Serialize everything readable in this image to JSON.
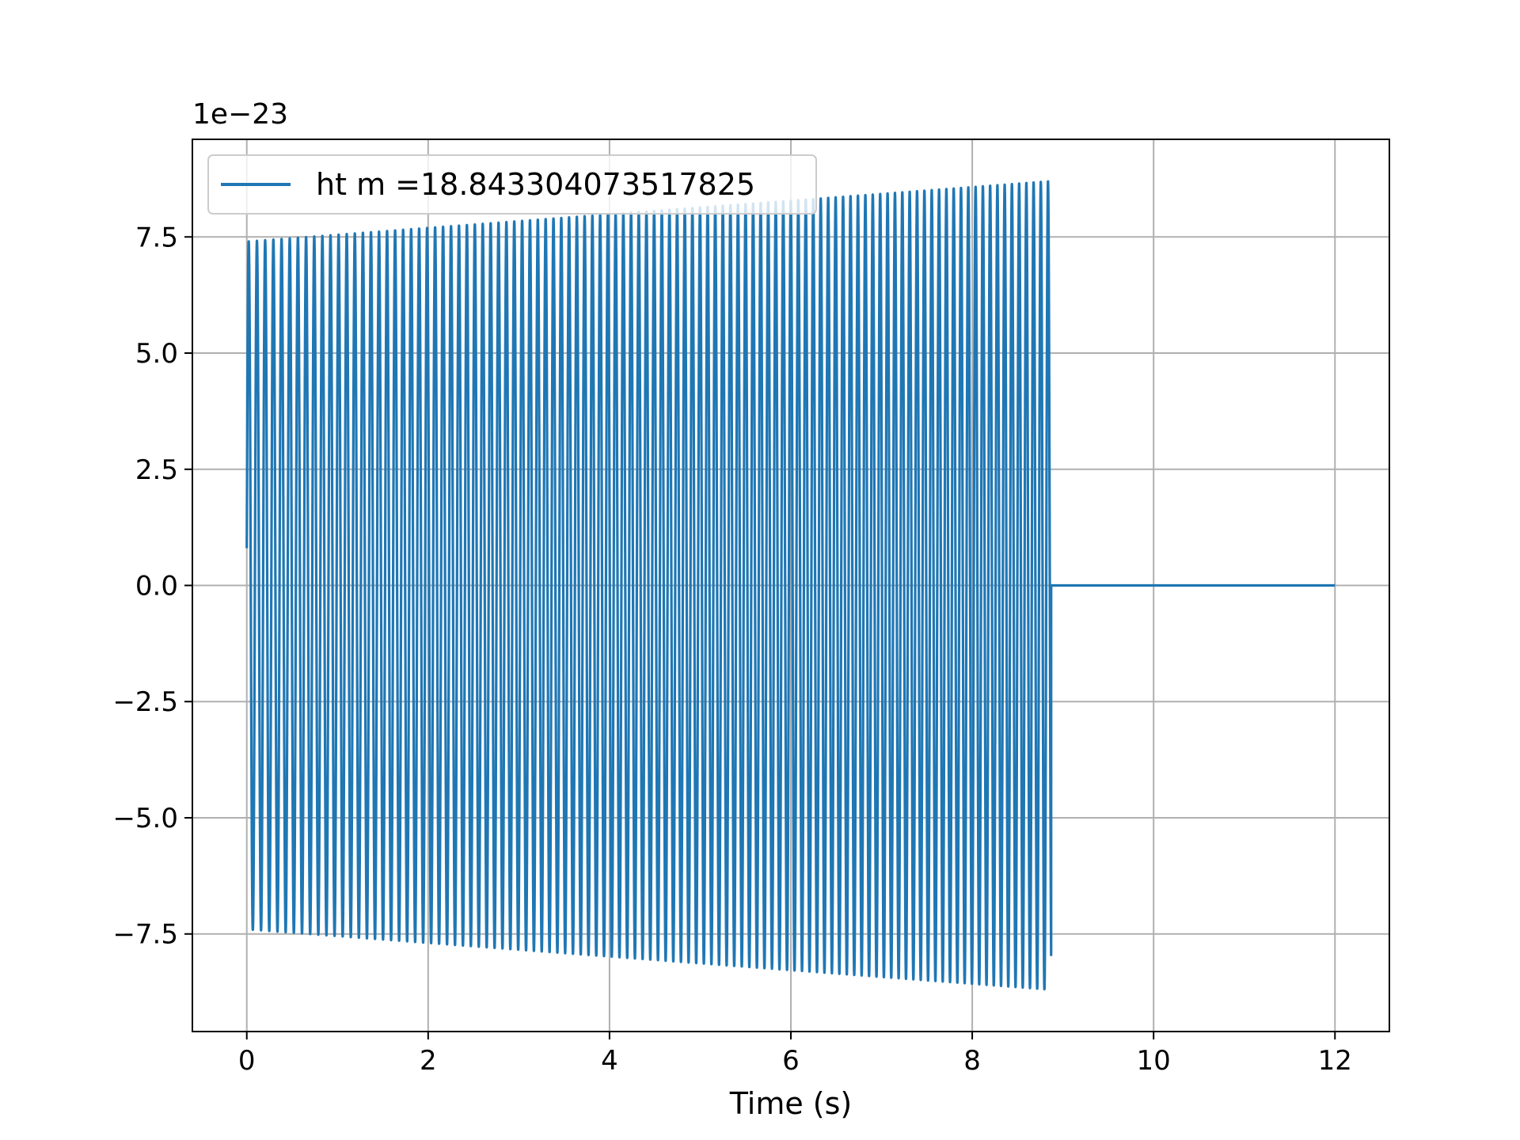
{
  "chart_data": {
    "type": "line",
    "title": "",
    "xlabel": "Time (s)",
    "ylabel": "",
    "y_offset_label": "1e−23",
    "xlim": [
      -0.6,
      12.6
    ],
    "ylim": [
      -9.6,
      9.6
    ],
    "y_unit_scale": "1e-23",
    "grid": true,
    "legend_position": "upper-left",
    "x_ticks": [
      {
        "value": 0,
        "label": "0"
      },
      {
        "value": 2,
        "label": "2"
      },
      {
        "value": 4,
        "label": "4"
      },
      {
        "value": 6,
        "label": "6"
      },
      {
        "value": 8,
        "label": "8"
      },
      {
        "value": 10,
        "label": "10"
      },
      {
        "value": 12,
        "label": "12"
      }
    ],
    "y_ticks": [
      {
        "value": -7.5,
        "label": "−7.5"
      },
      {
        "value": -5.0,
        "label": "−5.0"
      },
      {
        "value": -2.5,
        "label": "−2.5"
      },
      {
        "value": 0.0,
        "label": "0.0"
      },
      {
        "value": 2.5,
        "label": "2.5"
      },
      {
        "value": 5.0,
        "label": "5.0"
      },
      {
        "value": 7.5,
        "label": "7.5"
      }
    ],
    "series": [
      {
        "name": "ht m =18.843304073517825",
        "color": "#1f77b4",
        "waveform": {
          "t_start": 0.0,
          "t_cutoff": 8.87,
          "t_end": 12.0,
          "initial_value": 0.8,
          "amplitude_start": 7.4,
          "amplitude_end": 8.7,
          "frequency_start_hz": 11.0,
          "frequency_end_hz": 12.6,
          "post_cutoff_value": 0.0
        }
      }
    ]
  }
}
